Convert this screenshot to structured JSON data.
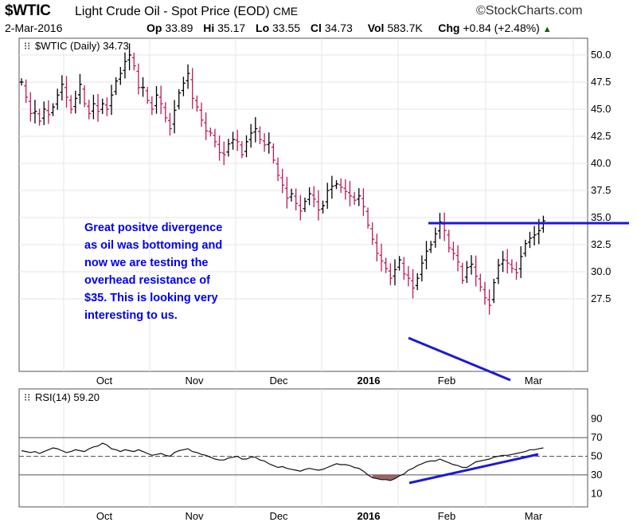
{
  "header": {
    "symbol": "$WTIC",
    "name": "Light Crude Oil - Spot Price (EOD)",
    "exchange": "CME",
    "logo": "©StockCharts.com",
    "date": "2-Mar-2016",
    "open_label": "Op",
    "open": "33.89",
    "high_label": "Hi",
    "high": "35.17",
    "low_label": "Lo",
    "low": "33.55",
    "close_label": "Cl",
    "close": "34.73",
    "volume_label": "Vol",
    "volume": "583.7K",
    "change_label": "Chg",
    "change": "+0.84 (+2.48%)",
    "change_arrow": "▲",
    "colors": {
      "up": "#006400"
    }
  },
  "price_panel": {
    "label": "$WTIC (Daily) 34.73",
    "y_ticks": [
      "50.0",
      "47.5",
      "45.0",
      "42.5",
      "40.0",
      "37.5",
      "35.0",
      "32.5",
      "30.0",
      "27.5"
    ]
  },
  "rsi_panel": {
    "label": "RSI(14) 59.20",
    "y_ticks": [
      "90",
      "70",
      "50",
      "30",
      "10"
    ]
  },
  "x_axis": {
    "months": [
      "Oct",
      "Nov",
      "Dec",
      "2016",
      "Feb",
      "Mar"
    ]
  },
  "annotation": {
    "lines": [
      "Great positve divergence",
      "as oil was bottoming and",
      "now we are testing the",
      "overhead resistance of",
      "$35. This is looking very",
      "interesting to us."
    ],
    "color": "#0000ee"
  },
  "chart_data": [
    {
      "type": "ohlc",
      "title": "$WTIC (Daily) 34.73",
      "ylim": [
        25.5,
        51.0
      ],
      "grid": true,
      "bar_colors": {
        "up": "#000000",
        "down": "#c0185a"
      },
      "closes": [
        47.5,
        46.1,
        44.6,
        44.8,
        43.9,
        45.0,
        44.5,
        45.2,
        46.3,
        47.3,
        46.1,
        45.0,
        46.0,
        47.3,
        45.5,
        44.6,
        45.5,
        44.8,
        45.5,
        45.0,
        46.3,
        47.6,
        48.3,
        49.4,
        50.0,
        49.0,
        47.0,
        47.0,
        45.8,
        45.0,
        46.3,
        45.5,
        44.2,
        43.2,
        44.9,
        46.5,
        47.4,
        48.3,
        46.0,
        45.2,
        44.0,
        43.0,
        42.8,
        42.0,
        41.0,
        40.8,
        41.8,
        42.2,
        42.0,
        40.8,
        42.0,
        42.8,
        43.2,
        42.2,
        41.7,
        41.9,
        40.3,
        38.9,
        38.0,
        36.8,
        37.2,
        36.3,
        35.6,
        36.5,
        37.2,
        36.7,
        35.7,
        36.1,
        37.5,
        37.9,
        38.1,
        37.8,
        37.4,
        37.0,
        36.6,
        37.0,
        36.0,
        34.3,
        33.0,
        31.7,
        31.0,
        30.3,
        29.4,
        30.2,
        31.1,
        29.8,
        29.4,
        28.5,
        29.4,
        30.8,
        31.9,
        32.5,
        33.5,
        34.6,
        33.8,
        32.2,
        31.7,
        30.9,
        29.2,
        30.4,
        30.7,
        29.6,
        28.6,
        27.6,
        26.9,
        29.0,
        30.6,
        31.1,
        30.8,
        30.3,
        29.9,
        31.4,
        32.6,
        33.1,
        33.4,
        33.8,
        34.7
      ],
      "resistance": 35.0
    },
    {
      "type": "line",
      "title": "RSI(14) 59.20",
      "ylim": [
        0,
        100
      ],
      "ref_lines": [
        70,
        50,
        30
      ],
      "values": [
        56,
        55,
        54,
        55,
        53,
        55,
        57,
        59,
        58,
        56,
        54,
        55,
        57,
        56,
        55,
        58,
        60,
        61,
        64,
        62,
        58,
        57,
        55,
        57,
        56,
        55,
        57,
        55,
        53,
        51,
        52,
        53,
        51,
        50,
        54,
        56,
        57,
        58,
        55,
        54,
        52,
        51,
        49,
        47,
        46,
        46,
        48,
        49,
        50,
        47,
        47,
        49,
        49,
        46,
        45,
        42,
        40,
        38,
        39,
        37,
        36,
        35,
        34,
        36,
        37,
        36,
        35,
        36,
        38,
        40,
        42,
        41,
        41,
        40,
        38,
        37,
        34,
        30,
        27,
        26,
        25,
        25,
        24,
        26,
        29,
        31,
        35,
        37,
        40,
        42,
        44,
        45,
        45,
        47,
        45,
        43,
        41,
        40,
        38,
        38,
        41,
        44,
        45,
        46,
        47,
        49,
        50,
        51,
        51,
        52,
        53,
        54,
        55,
        57,
        57,
        58,
        59
      ],
      "oversold_fill": "#8b4a4a"
    }
  ]
}
